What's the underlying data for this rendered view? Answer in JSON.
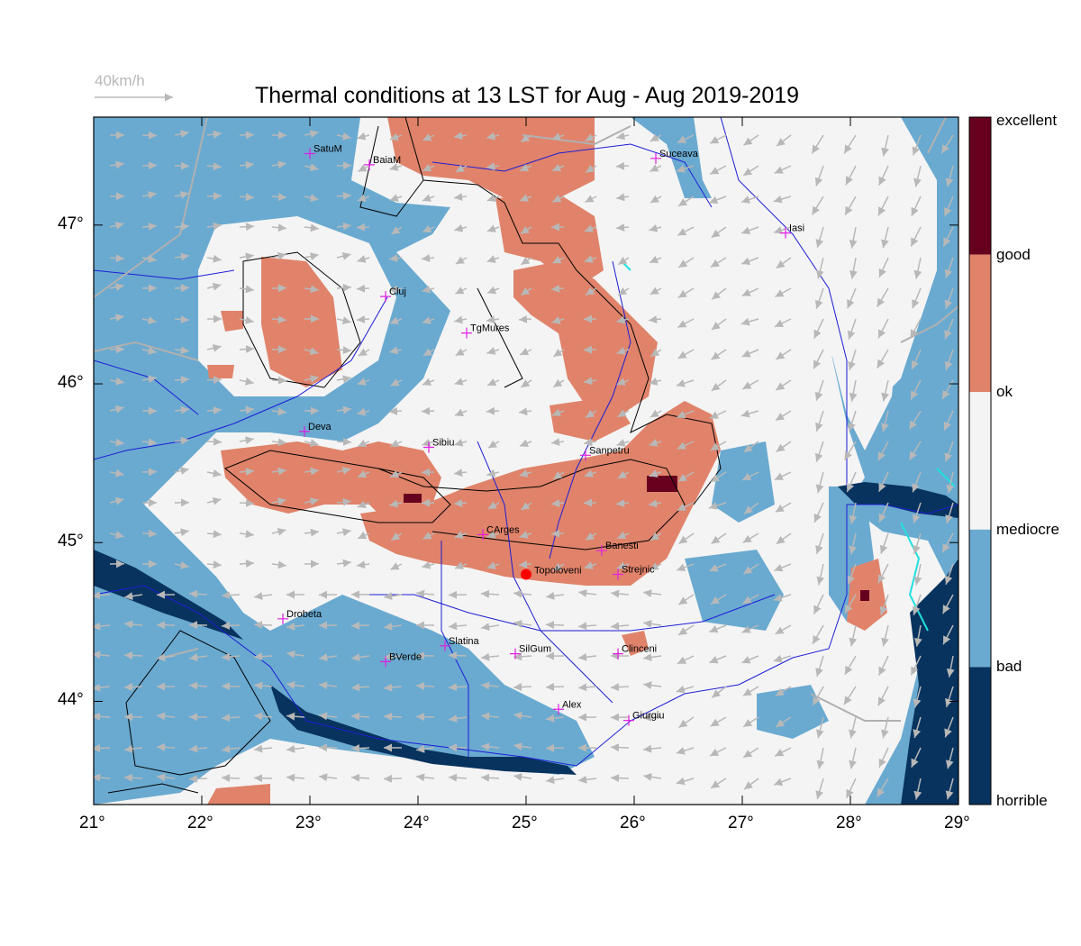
{
  "title": "Thermal conditions at 13 LST for Aug - Aug  2019-2019",
  "wind_reference": "40km/h",
  "axes": {
    "x_ticks": [
      "21°",
      "22°",
      "23°",
      "24°",
      "25°",
      "26°",
      "27°",
      "28°",
      "29°"
    ],
    "y_ticks": [
      "47°",
      "46°",
      "45°",
      "44°"
    ],
    "lon_range": [
      21,
      29
    ],
    "lat_range": [
      43.35,
      47.68
    ]
  },
  "colorbar": {
    "labels": [
      "excellent",
      "good",
      "ok",
      "mediocre",
      "bad",
      "horrible"
    ],
    "colors": [
      "#67001f",
      "#e0836a",
      "#f4f4f4",
      "#6aaad0",
      "#08335e"
    ]
  },
  "colors": {
    "horrible": "#08335e",
    "bad": "#6aaad0",
    "ok": "#f4f4f4",
    "good": "#e0836a",
    "excellent": "#67001f",
    "rivers": "#1d1dd6",
    "roads": "#b0b0b0",
    "contours": "#000000",
    "city_marker": "#e020e0",
    "highlight_point": "#ff0000"
  },
  "cities": [
    {
      "name": "SatuM",
      "lon": 23.0,
      "lat": 47.45
    },
    {
      "name": "BaiaM",
      "lon": 23.55,
      "lat": 47.38
    },
    {
      "name": "Suceava",
      "lon": 26.2,
      "lat": 47.42
    },
    {
      "name": "Iasi",
      "lon": 27.4,
      "lat": 46.95
    },
    {
      "name": "Cluj",
      "lon": 23.7,
      "lat": 46.55
    },
    {
      "name": "TgMures",
      "lon": 24.45,
      "lat": 46.32
    },
    {
      "name": "Deva",
      "lon": 22.95,
      "lat": 45.7
    },
    {
      "name": "Sibiu",
      "lon": 24.1,
      "lat": 45.6
    },
    {
      "name": "Sanpetru",
      "lon": 25.55,
      "lat": 45.55
    },
    {
      "name": "CArges",
      "lon": 24.6,
      "lat": 45.05
    },
    {
      "name": "Banesti",
      "lon": 25.7,
      "lat": 44.95
    },
    {
      "name": "Strejnic",
      "lon": 25.85,
      "lat": 44.8
    },
    {
      "name": "Drobeta",
      "lon": 22.75,
      "lat": 44.52
    },
    {
      "name": "Slatina",
      "lon": 24.25,
      "lat": 44.35
    },
    {
      "name": "SilGum",
      "lon": 24.9,
      "lat": 44.3
    },
    {
      "name": "Clinceni",
      "lon": 25.85,
      "lat": 44.3
    },
    {
      "name": "BVerde",
      "lon": 23.7,
      "lat": 44.25
    },
    {
      "name": "Alex",
      "lon": 25.3,
      "lat": 43.95
    },
    {
      "name": "Giurgiu",
      "lon": 25.95,
      "lat": 43.88
    }
  ],
  "highlight": {
    "name": "Topoloveni",
    "lon": 25.0,
    "lat": 44.8
  }
}
